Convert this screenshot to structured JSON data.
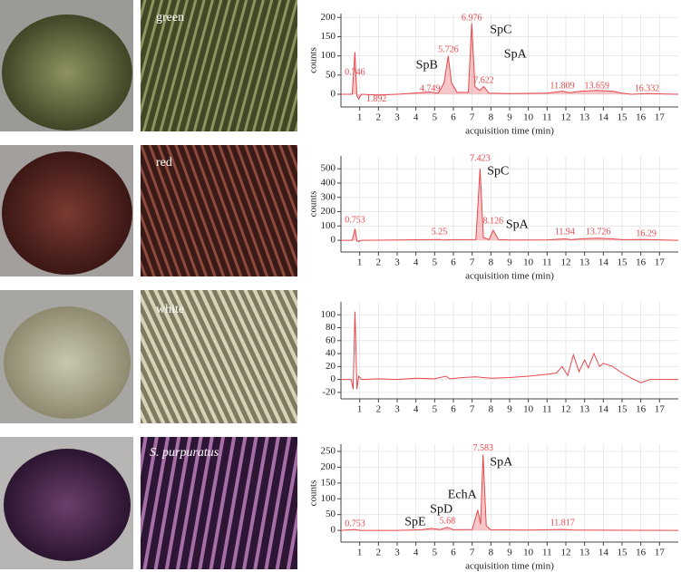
{
  "specimens": [
    "green",
    "red",
    "white",
    "S. purpuratus"
  ],
  "chart_data": [
    {
      "type": "line",
      "y_label": "counts",
      "x_label": "acquisition time (min)",
      "xlim": [
        0,
        18
      ],
      "xticks": [
        1,
        2,
        3,
        4,
        5,
        6,
        7,
        8,
        9,
        10,
        11,
        12,
        13,
        14,
        15,
        16,
        17
      ],
      "ylim": [
        -33,
        210
      ],
      "yticks": [
        0,
        50,
        100,
        150,
        200
      ],
      "grid": true,
      "series": [
        {
          "color": "#e8474b",
          "fill": true,
          "x": [
            0,
            0.6,
            0.746,
            0.85,
            0.95,
            1.1,
            1.892,
            3,
            4.749,
            5.2,
            5.5,
            5.726,
            5.9,
            6.2,
            6.8,
            6.976,
            7.15,
            7.4,
            7.622,
            7.9,
            9,
            11,
            11.809,
            12.2,
            12.8,
            13.659,
            14.5,
            15,
            15.5,
            16.332,
            18
          ],
          "values": [
            0,
            0,
            110,
            -5,
            -12,
            0,
            -2,
            0,
            6,
            3,
            30,
            100,
            30,
            5,
            5,
            185,
            20,
            10,
            20,
            3,
            2,
            3,
            8,
            4,
            8,
            10,
            8,
            3,
            0,
            2,
            0
          ]
        }
      ],
      "peak_labels": [
        {
          "time": 0.746,
          "y": 56
        },
        {
          "time": 1.892,
          "y": -14
        },
        {
          "time": 4.749,
          "y": 14
        },
        {
          "time": 5.726,
          "y": 115
        },
        {
          "time": 6.976,
          "y": 198
        },
        {
          "time": 7.622,
          "y": 35
        },
        {
          "time": 11.809,
          "y": 21
        },
        {
          "time": 13.659,
          "y": 21
        },
        {
          "time": 16.332,
          "y": 14
        }
      ],
      "annotations": [
        {
          "text": "SpB",
          "x": 4.0,
          "y": 75
        },
        {
          "text": "SpC",
          "x": 7.95,
          "y": 167
        },
        {
          "text": "SpA",
          "x": 8.7,
          "y": 103
        }
      ]
    },
    {
      "type": "line",
      "y_label": "counts",
      "x_label": "acquisition time (min)",
      "xlim": [
        0,
        18
      ],
      "xticks": [
        1,
        2,
        3,
        4,
        5,
        6,
        7,
        8,
        9,
        10,
        11,
        12,
        13,
        14,
        15,
        16,
        17
      ],
      "ylim": [
        -82,
        590
      ],
      "yticks": [
        0,
        100,
        200,
        300,
        400,
        500
      ],
      "grid": true,
      "series": [
        {
          "color": "#e8474b",
          "fill": true,
          "x": [
            0,
            0.6,
            0.753,
            0.85,
            0.95,
            1.1,
            3,
            5.25,
            5.5,
            6,
            7.2,
            7.423,
            7.6,
            7.9,
            8.126,
            8.4,
            9,
            11,
            11.94,
            12.3,
            13,
            13.726,
            14.5,
            15,
            16.29,
            18
          ],
          "values": [
            0,
            0,
            80,
            -5,
            -10,
            0,
            2,
            5,
            2,
            4,
            5,
            500,
            20,
            5,
            70,
            5,
            2,
            3,
            10,
            4,
            12,
            15,
            10,
            4,
            5,
            0
          ]
        }
      ],
      "peak_labels": [
        {
          "time": 0.753,
          "y": 139
        },
        {
          "time": 5.25,
          "y": 57
        },
        {
          "time": 7.423,
          "y": 570
        },
        {
          "time": 8.126,
          "y": 133
        },
        {
          "time": 11.94,
          "y": 57
        },
        {
          "time": 13.726,
          "y": 57
        },
        {
          "time": 16.29,
          "y": 44
        }
      ],
      "annotations": [
        {
          "text": "SpC",
          "x": 7.8,
          "y": 480
        },
        {
          "text": "SpA",
          "x": 8.8,
          "y": 107
        }
      ]
    },
    {
      "type": "line",
      "xlim": [
        0,
        18
      ],
      "xticks": [
        1,
        2,
        3,
        4,
        5,
        6,
        7,
        8,
        9,
        10,
        11,
        12,
        13,
        14,
        15,
        16,
        17
      ],
      "ylim": [
        -30,
        120
      ],
      "yticks": [
        -20,
        0,
        20,
        40,
        60,
        80,
        100
      ],
      "grid": true,
      "series": [
        {
          "color": "#e8474b",
          "fill": false,
          "x": [
            0,
            0.55,
            0.65,
            0.75,
            0.85,
            0.95,
            1.1,
            2,
            3,
            4,
            5,
            5.6,
            5.8,
            6.5,
            7.2,
            8,
            9,
            10,
            11,
            11.5,
            11.8,
            12.1,
            12.4,
            12.7,
            13.0,
            13.2,
            13.5,
            13.8,
            14,
            14.5,
            15,
            15.5,
            16,
            16.5,
            17,
            18
          ],
          "values": [
            0,
            0,
            -15,
            105,
            -15,
            5,
            0,
            1,
            0,
            2,
            1,
            5,
            1,
            3,
            4,
            2,
            3,
            5,
            8,
            10,
            20,
            6,
            38,
            12,
            30,
            18,
            40,
            20,
            25,
            20,
            10,
            2,
            -5,
            0,
            0,
            0
          ]
        }
      ],
      "peak_labels": [],
      "annotations": []
    },
    {
      "type": "line",
      "y_label": "counts",
      "x_label": "acquisition time (min)",
      "xlim": [
        0,
        18
      ],
      "xticks": [
        1,
        2,
        3,
        4,
        5,
        6,
        7,
        8,
        9,
        10,
        11,
        12,
        13,
        14,
        15,
        16,
        17
      ],
      "ylim": [
        -37,
        273
      ],
      "yticks": [
        0,
        50,
        100,
        150,
        200,
        250
      ],
      "grid": true,
      "series": [
        {
          "color": "#e8474b",
          "fill": true,
          "x": [
            0,
            0.753,
            1,
            3,
            4.3,
            4.8,
            5.3,
            5.68,
            6,
            7,
            7.3,
            7.45,
            7.583,
            7.75,
            8,
            10,
            11.817,
            12.5,
            18
          ],
          "values": [
            0,
            3,
            0,
            0,
            2,
            6,
            3,
            10,
            2,
            3,
            65,
            20,
            240,
            15,
            2,
            1,
            3,
            1,
            0
          ]
        }
      ],
      "peak_labels": [
        {
          "time": 0.753,
          "y": 20
        },
        {
          "time": 5.68,
          "y": 29
        },
        {
          "time": 7.583,
          "y": 259
        },
        {
          "time": 11.817,
          "y": 23
        }
      ],
      "annotations": [
        {
          "text": "SpE",
          "x": 3.4,
          "y": 26
        },
        {
          "text": "SpD",
          "x": 4.75,
          "y": 66
        },
        {
          "text": "EchA",
          "x": 5.7,
          "y": 112
        },
        {
          "text": "SpA",
          "x": 7.95,
          "y": 215
        }
      ]
    }
  ]
}
